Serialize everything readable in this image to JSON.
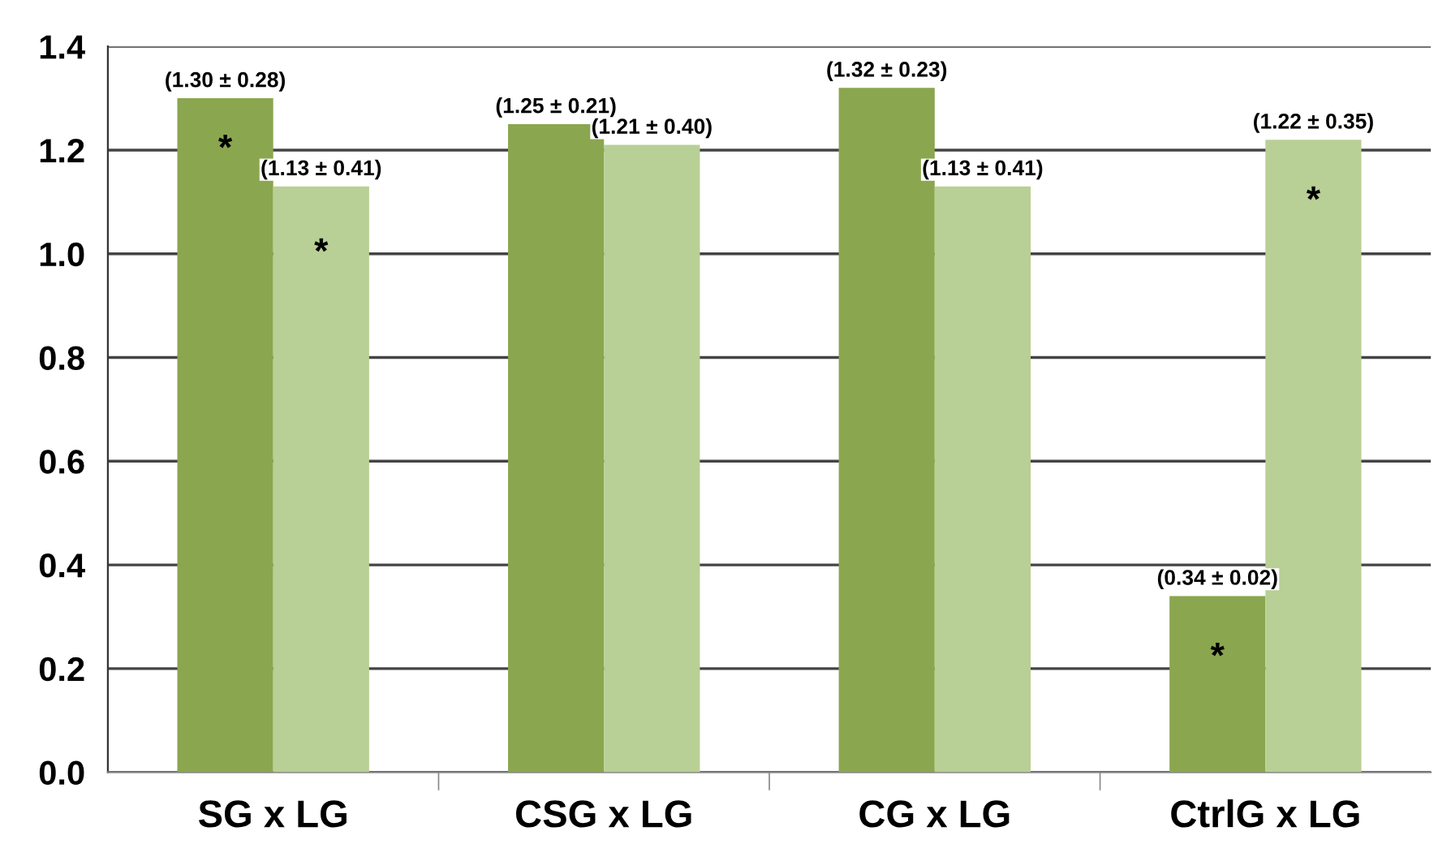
{
  "chart_data": {
    "type": "bar",
    "categories": [
      "SG x LG",
      "CSG x LG",
      "CG x LG",
      "CtrlG x LG"
    ],
    "series": [
      {
        "color": "#8aa64f",
        "values": [
          1.3,
          1.25,
          1.32,
          0.34
        ],
        "value_labels": [
          "(1.30 ± 0.28)",
          "(1.25 ± 0.21)",
          "(1.32 ± 0.23)",
          "(0.34 ± 0.02)"
        ]
      },
      {
        "color": "#b8cf95",
        "values": [
          1.13,
          1.21,
          1.13,
          1.22
        ],
        "value_labels": [
          "(1.13 ± 0.41)",
          "(1.21 ± 0.40)",
          "(1.13 ± 0.41)",
          "(1.22 ± 0.35)"
        ]
      }
    ],
    "annotations": [
      {
        "text": "*",
        "x": "SG x LG",
        "y": 1.2
      },
      {
        "text": "*",
        "x": "SG x LG",
        "y": 1.0
      },
      {
        "text": "*",
        "x": "CtrlG x LG",
        "y": 0.22
      },
      {
        "text": "*",
        "x": "CtrlG x LG",
        "y": 1.1
      }
    ],
    "ylim": [
      0,
      1.4
    ],
    "yticks": [
      "0.0",
      "0.2",
      "0.4",
      "0.6",
      "0.8",
      "1.0",
      "1.2",
      "1.4"
    ],
    "grid": "y",
    "legend": false
  }
}
